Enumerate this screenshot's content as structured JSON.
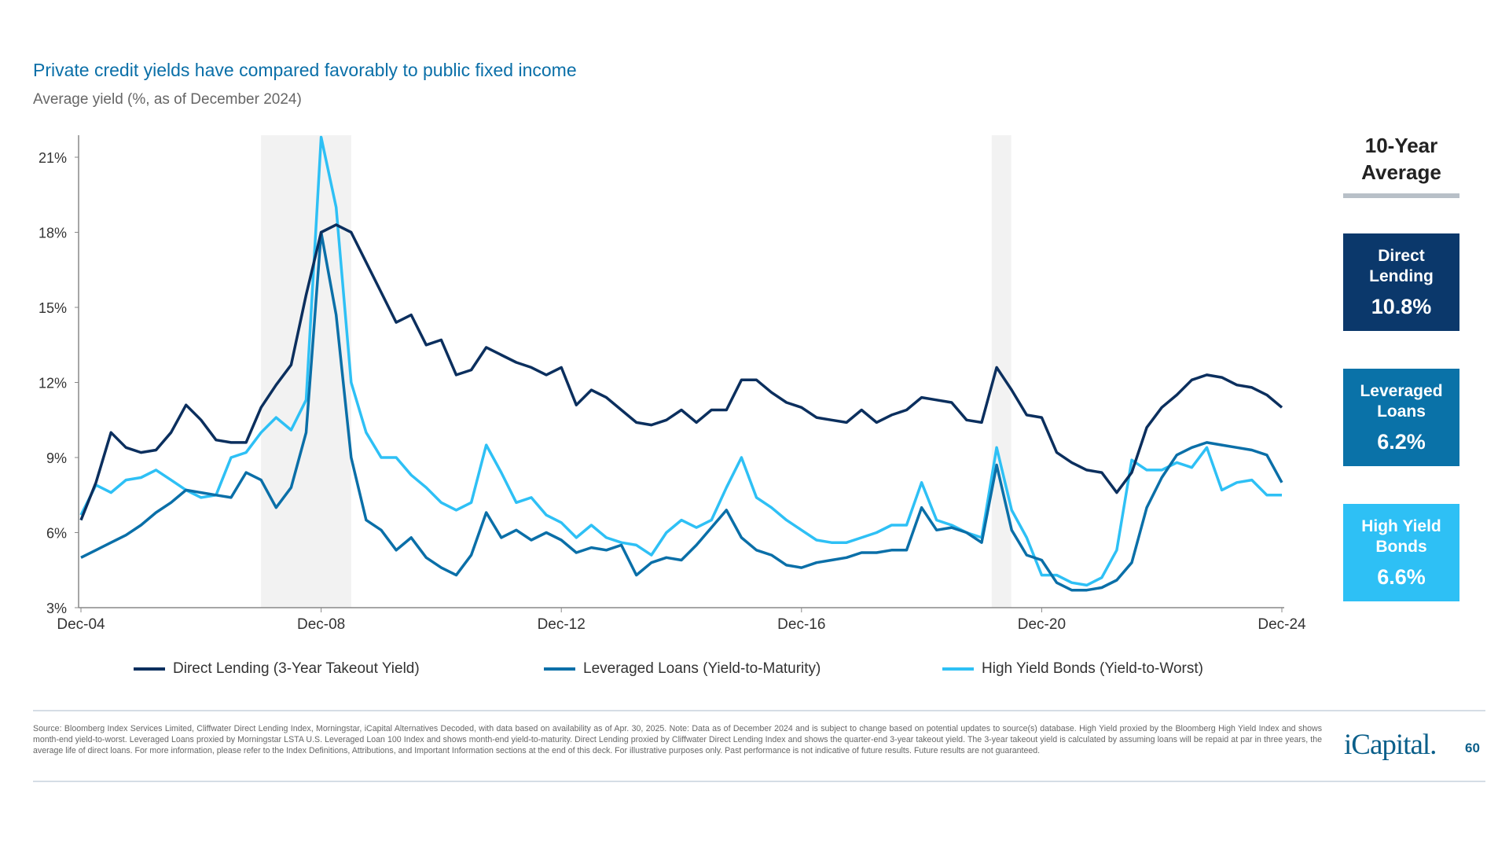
{
  "header": {
    "title": "Private credit yields have compared favorably to public fixed income",
    "subtitle": "Average yield (%, as of December 2024)"
  },
  "chart_data": {
    "type": "line",
    "title": "Private credit yields have compared favorably to public fixed income",
    "subtitle": "Average yield (%, as of December 2024)",
    "xlabel": "",
    "ylabel": "",
    "ylim": [
      3,
      21
    ],
    "yticks": [
      3,
      6,
      9,
      12,
      15,
      18,
      21
    ],
    "ytick_labels": [
      "3%",
      "6%",
      "9%",
      "12%",
      "15%",
      "18%",
      "21%"
    ],
    "xlim": [
      "2004-12",
      "2024-12"
    ],
    "xticks": [
      "2004-12",
      "2008-12",
      "2012-12",
      "2016-12",
      "2020-12",
      "2024-12"
    ],
    "xtick_labels": [
      "Dec-04",
      "Dec-08",
      "Dec-12",
      "Dec-16",
      "Dec-20",
      "Dec-24"
    ],
    "grid": false,
    "legend": "bottom",
    "shaded_periods": [
      [
        "2007-12",
        "2009-06"
      ],
      [
        "2020-02",
        "2020-04"
      ]
    ],
    "x": [
      "2004-12",
      "2005-03",
      "2005-06",
      "2005-09",
      "2005-12",
      "2006-03",
      "2006-06",
      "2006-09",
      "2006-12",
      "2007-03",
      "2007-06",
      "2007-09",
      "2007-12",
      "2008-03",
      "2008-06",
      "2008-09",
      "2008-12",
      "2009-03",
      "2009-06",
      "2009-09",
      "2009-12",
      "2010-03",
      "2010-06",
      "2010-09",
      "2010-12",
      "2011-03",
      "2011-06",
      "2011-09",
      "2011-12",
      "2012-03",
      "2012-06",
      "2012-09",
      "2012-12",
      "2013-03",
      "2013-06",
      "2013-09",
      "2013-12",
      "2014-03",
      "2014-06",
      "2014-09",
      "2014-12",
      "2015-03",
      "2015-06",
      "2015-09",
      "2015-12",
      "2016-03",
      "2016-06",
      "2016-09",
      "2016-12",
      "2017-03",
      "2017-06",
      "2017-09",
      "2017-12",
      "2018-03",
      "2018-06",
      "2018-09",
      "2018-12",
      "2019-03",
      "2019-06",
      "2019-09",
      "2019-12",
      "2020-03",
      "2020-06",
      "2020-09",
      "2020-12",
      "2021-03",
      "2021-06",
      "2021-09",
      "2021-12",
      "2022-03",
      "2022-06",
      "2022-09",
      "2022-12",
      "2023-03",
      "2023-06",
      "2023-09",
      "2023-12",
      "2024-03",
      "2024-06",
      "2024-09",
      "2024-12"
    ],
    "series": [
      {
        "name": "Direct Lending (3-Year Takeout Yield)",
        "color": "#0b2f5e",
        "values": [
          6.5,
          8.0,
          10.0,
          9.4,
          9.2,
          9.3,
          10.0,
          11.1,
          10.5,
          9.7,
          9.6,
          9.6,
          11.0,
          11.9,
          12.7,
          15.5,
          18.0,
          18.3,
          18.0,
          16.8,
          15.6,
          14.4,
          14.7,
          13.5,
          13.7,
          12.3,
          12.5,
          13.4,
          13.1,
          12.8,
          12.6,
          12.3,
          12.6,
          11.1,
          11.7,
          11.4,
          10.9,
          10.4,
          10.3,
          10.5,
          10.9,
          10.4,
          10.9,
          10.9,
          12.1,
          12.1,
          11.6,
          11.2,
          11.0,
          10.6,
          10.5,
          10.4,
          10.9,
          10.4,
          10.7,
          10.9,
          11.4,
          11.3,
          11.2,
          10.5,
          10.4,
          12.6,
          11.7,
          10.7,
          10.6,
          9.2,
          8.8,
          8.5,
          8.4,
          7.6,
          8.4,
          10.2,
          11.0,
          11.5,
          12.1,
          12.3,
          12.2,
          11.9,
          11.8,
          11.5,
          11.0
        ]
      },
      {
        "name": "Leveraged Loans (Yield-to-Maturity)",
        "color": "#0a6fa8",
        "values": [
          5.0,
          5.3,
          5.6,
          5.9,
          6.3,
          6.8,
          7.2,
          7.7,
          7.6,
          7.5,
          7.4,
          8.4,
          8.1,
          7.0,
          7.8,
          10.0,
          18.0,
          14.7,
          9.0,
          6.5,
          6.1,
          5.3,
          5.8,
          5.0,
          4.6,
          4.3,
          5.1,
          6.8,
          5.8,
          6.1,
          5.7,
          6.0,
          5.7,
          5.2,
          5.4,
          5.3,
          5.5,
          4.3,
          4.8,
          5.0,
          4.9,
          5.5,
          6.2,
          6.9,
          5.8,
          5.3,
          5.1,
          4.7,
          4.6,
          4.8,
          4.9,
          5.0,
          5.2,
          5.2,
          5.3,
          5.3,
          7.0,
          6.1,
          6.2,
          6.0,
          5.6,
          8.7,
          6.1,
          5.1,
          4.9,
          4.0,
          3.7,
          3.7,
          3.8,
          4.1,
          4.8,
          7.0,
          8.2,
          9.1,
          9.4,
          9.6,
          9.5,
          9.4,
          9.3,
          9.1,
          8.0
        ]
      },
      {
        "name": "High Yield Bonds (Yield-to-Worst)",
        "color": "#2ec0f5",
        "values": [
          6.7,
          7.9,
          7.6,
          8.1,
          8.2,
          8.5,
          8.1,
          7.7,
          7.4,
          7.5,
          9.0,
          9.2,
          10.0,
          10.6,
          10.1,
          11.3,
          21.8,
          19.0,
          12.0,
          10.0,
          9.0,
          9.0,
          8.3,
          7.8,
          7.2,
          6.9,
          7.2,
          9.5,
          8.4,
          7.2,
          7.4,
          6.7,
          6.4,
          5.8,
          6.3,
          5.8,
          5.6,
          5.5,
          5.1,
          6.0,
          6.5,
          6.2,
          6.5,
          7.8,
          9.0,
          7.4,
          7.0,
          6.5,
          6.1,
          5.7,
          5.6,
          5.6,
          5.8,
          6.0,
          6.3,
          6.3,
          8.0,
          6.5,
          6.3,
          6.0,
          5.8,
          9.4,
          6.9,
          5.8,
          4.3,
          4.3,
          4.0,
          3.9,
          4.2,
          5.3,
          8.9,
          8.5,
          8.5,
          8.8,
          8.6,
          9.4,
          7.7,
          8.0,
          8.1,
          7.5,
          7.5
        ]
      }
    ]
  },
  "panel": {
    "heading_line1": "10-Year",
    "heading_line2": "Average",
    "boxes": [
      {
        "label_line1": "Direct",
        "label_line2": "Lending",
        "value": "10.8%",
        "color": "#0b386b"
      },
      {
        "label_line1": "Leveraged",
        "label_line2": "Loans",
        "value": "6.2%",
        "color": "#0a72a8"
      },
      {
        "label_line1": "High Yield",
        "label_line2": "Bonds",
        "value": "6.6%",
        "color": "#2ec0f5"
      }
    ]
  },
  "footer": {
    "source": "Source: Bloomberg Index Services Limited, Cliffwater Direct Lending Index, Morningstar, iCapital Alternatives Decoded, with data based on availability as of Apr. 30, 2025. Note: Data as of December 2024 and is subject to change based on potential updates to source(s) database. High Yield proxied by the Bloomberg High Yield Index and shows month-end yield-to-worst. Leveraged Loans proxied by Morningstar LSTA U.S. Leveraged Loan 100 Index and shows month-end yield-to-maturity. Direct Lending proxied by Cliffwater Direct Lending Index and shows the quarter-end 3-year takeout yield. The 3-year takeout yield is calculated by assuming loans will be repaid at par in three years, the average life of direct loans. For more information, please refer to the Index Definitions, Attributions, and Important Information sections at the end of this deck. For illustrative purposes only. Past performance is not indicative of future results. Future results are not guaranteed.",
    "logo": "iCapital.",
    "page_number": "60"
  }
}
